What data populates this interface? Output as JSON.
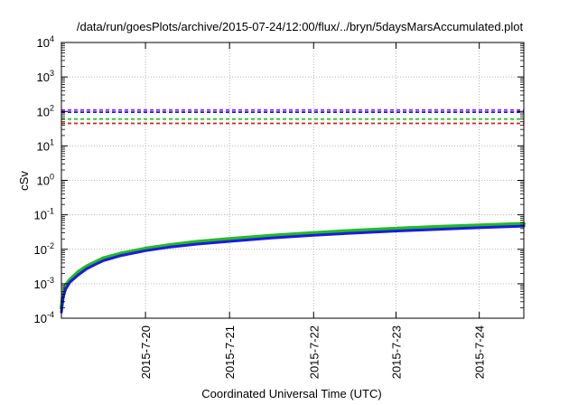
{
  "chart_data": {
    "type": "line",
    "title": "/data/run/goesPlots/archive/2015-07-24/12:00/flux/../bryn/5daysMarsAccumulated.plot",
    "xlabel": "Coordinated Universal Time (UTC)",
    "ylabel": "cSv",
    "y_scale": "log",
    "ylim": [
      0.0001,
      10000
    ],
    "xlim": [
      0.0,
      5.5
    ],
    "grid": true,
    "y_ticks": [
      {
        "value": 0.0001,
        "base": "10",
        "exp": "-4"
      },
      {
        "value": 0.001,
        "base": "10",
        "exp": "-3"
      },
      {
        "value": 0.01,
        "base": "10",
        "exp": "-2"
      },
      {
        "value": 0.1,
        "base": "10",
        "exp": "-1"
      },
      {
        "value": 1,
        "base": "10",
        "exp": "0"
      },
      {
        "value": 10,
        "base": "10",
        "exp": "1"
      },
      {
        "value": 100,
        "base": "10",
        "exp": "2"
      },
      {
        "value": 1000,
        "base": "10",
        "exp": "3"
      },
      {
        "value": 10000,
        "base": "10",
        "exp": "4"
      }
    ],
    "x_ticks": [
      {
        "value": 1.0,
        "label": "2015-7-20"
      },
      {
        "value": 2.0,
        "label": "2015-7-21"
      },
      {
        "value": 3.0,
        "label": "2015-7-22"
      },
      {
        "value": 3.98,
        "label": "2015-7-23"
      },
      {
        "value": 4.97,
        "label": "2015-7-24"
      }
    ],
    "reference_lines": [
      {
        "value": 110,
        "color": "#8a2be2",
        "style": "dashed"
      },
      {
        "value": 95,
        "color": "#1a1ae6",
        "style": "dashed"
      },
      {
        "value": 60,
        "color": "#22cc22",
        "style": "dashed"
      },
      {
        "value": 45,
        "color": "#e61a1a",
        "style": "dashed"
      }
    ],
    "series": [
      {
        "color": "#22bb22",
        "x": [
          0.0,
          0.02,
          0.05,
          0.1,
          0.2,
          0.3,
          0.4,
          0.5,
          0.7,
          1.0,
          1.3,
          1.6,
          2.0,
          2.5,
          3.0,
          3.5,
          4.0,
          4.5,
          5.0,
          5.5
        ],
        "y": [
          0.0002,
          0.0005,
          0.0009,
          0.0013,
          0.0022,
          0.0032,
          0.0042,
          0.0055,
          0.0075,
          0.0105,
          0.0135,
          0.0165,
          0.02,
          0.025,
          0.03,
          0.035,
          0.04,
          0.045,
          0.05,
          0.055
        ]
      },
      {
        "color": "#1a1ae6",
        "x": [
          0.0,
          0.02,
          0.05,
          0.1,
          0.2,
          0.3,
          0.4,
          0.5,
          0.7,
          1.0,
          1.3,
          1.6,
          2.0,
          2.5,
          3.0,
          3.5,
          4.0,
          4.5,
          5.0,
          5.5
        ],
        "y": [
          0.00015,
          0.0004,
          0.0007,
          0.0011,
          0.0018,
          0.0027,
          0.0036,
          0.0047,
          0.0065,
          0.0091,
          0.0117,
          0.0141,
          0.017,
          0.0212,
          0.0255,
          0.0298,
          0.034,
          0.0382,
          0.0425,
          0.047
        ]
      }
    ]
  }
}
